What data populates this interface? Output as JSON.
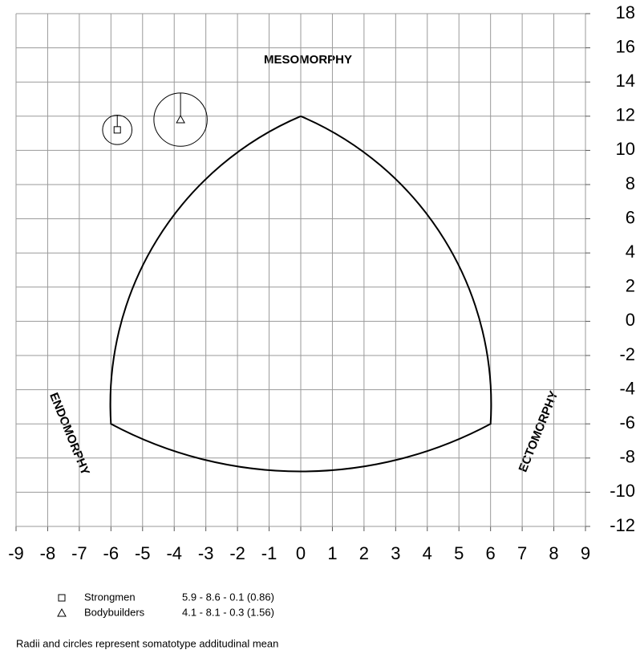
{
  "chart_data": {
    "type": "somatochart",
    "xlim": [
      -9,
      9
    ],
    "ylim": [
      -12,
      18
    ],
    "xticks": [
      -9,
      -8,
      -7,
      -6,
      -5,
      -4,
      -3,
      -2,
      -1,
      0,
      1,
      2,
      3,
      4,
      5,
      6,
      7,
      8,
      9
    ],
    "yticks": [
      -12,
      -10,
      -8,
      -6,
      -4,
      -2,
      0,
      2,
      4,
      6,
      8,
      10,
      12,
      14,
      16,
      18
    ],
    "grid": true,
    "annotations": {
      "top": "MESOMORPHY",
      "left": "ENDOMORPHY",
      "right": "ECTOMORPHY"
    },
    "series": [
      {
        "name": "Strongmen",
        "marker": "square",
        "x": -5.8,
        "y": 11.2,
        "sam": 0.86,
        "rating": "5.9 - 8.6 - 0.1  (0.86)"
      },
      {
        "name": "Bodybuilders",
        "marker": "triangle",
        "x": -3.8,
        "y": 11.8,
        "sam": 1.56,
        "rating": "4.1 - 8.1 - 0.3  (1.56)"
      }
    ],
    "footnote": "Radii and circles represent somatotype additudinal mean"
  }
}
